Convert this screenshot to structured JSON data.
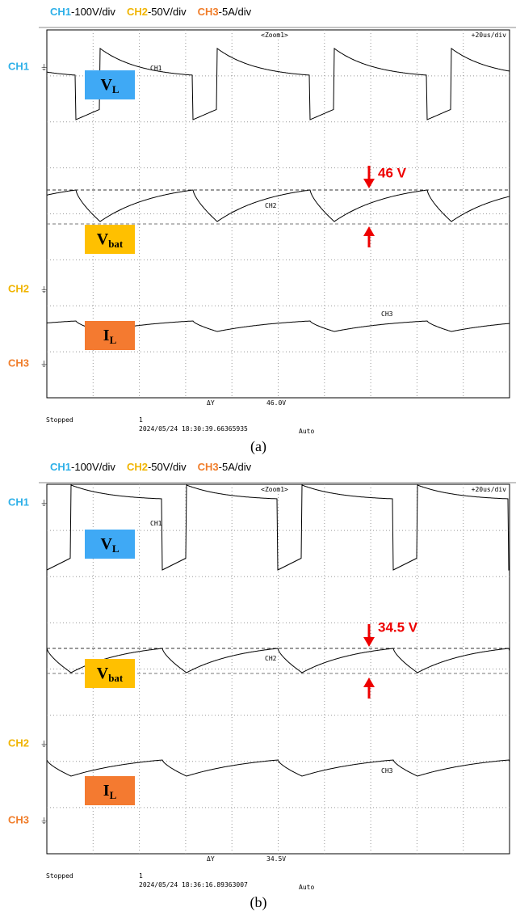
{
  "panels": [
    {
      "header": {
        "ch1": "CH1",
        "ch1_scale": "-100V/div",
        "ch2": "CH2",
        "ch2_scale": "-50V/div",
        "ch3": "CH3",
        "ch3_scale": "-5A/div"
      },
      "zoom": "<Zoom1>",
      "timebase": "+20us/div",
      "channel_labels": [
        "CH1",
        "CH2",
        "CH3"
      ],
      "trace_labels": [
        "CH1",
        "CH2",
        "CH3"
      ],
      "boxes": [
        {
          "symbol": "V",
          "subscript": "L"
        },
        {
          "symbol": "V",
          "subscript": "bat"
        },
        {
          "symbol": "I",
          "subscript": "L"
        }
      ],
      "annotation": "46 V",
      "delta_label": "ΔY",
      "delta_value": "46.0V",
      "status": "Stopped",
      "record": "1",
      "timestamp": "2024/05/24 18:30:39.66365935",
      "mode": "Auto",
      "caption": "(a)"
    },
    {
      "header": {
        "ch1": "CH1",
        "ch1_scale": "-100V/div",
        "ch2": "CH2",
        "ch2_scale": "-50V/div",
        "ch3": "CH3",
        "ch3_scale": "-5A/div"
      },
      "zoom": "<Zoom1>",
      "timebase": "+20us/div",
      "channel_labels": [
        "CH1",
        "CH2",
        "CH3"
      ],
      "trace_labels": [
        "CH1",
        "CH2",
        "CH3"
      ],
      "boxes": [
        {
          "symbol": "V",
          "subscript": "L"
        },
        {
          "symbol": "V",
          "subscript": "bat"
        },
        {
          "symbol": "I",
          "subscript": "L"
        }
      ],
      "annotation": "34.5 V",
      "delta_label": "ΔY",
      "delta_value": "34.5V",
      "status": "Stopped",
      "record": "1",
      "timestamp": "2024/05/24 18:36:16.89363007",
      "mode": "Auto",
      "caption": "(b)"
    }
  ]
}
